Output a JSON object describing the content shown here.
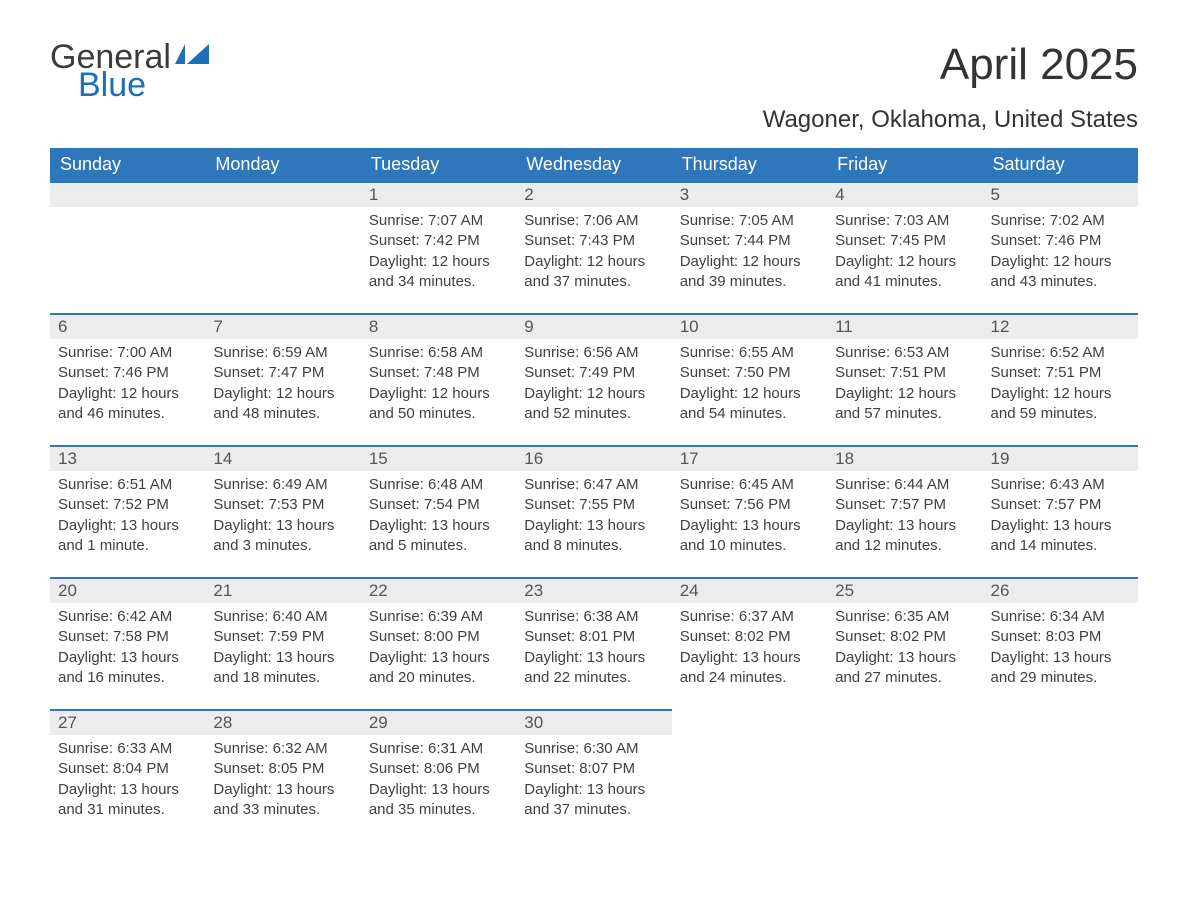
{
  "logo": {
    "text1": "General",
    "text2": "Blue"
  },
  "title": "April 2025",
  "location": "Wagoner, Oklahoma, United States",
  "colors": {
    "header_bg": "#2f77bb",
    "header_text": "#ffffff",
    "daynum_bg": "#ececec",
    "daynum_border": "#2f77bb",
    "body_text": "#404040",
    "title_text": "#333333",
    "logo_blue": "#1d6fb8",
    "logo_gray": "#3b3b3b",
    "page_bg": "#ffffff"
  },
  "typography": {
    "title_fontsize": 44,
    "location_fontsize": 24,
    "header_fontsize": 18,
    "daynum_fontsize": 17,
    "body_fontsize": 15,
    "font_family": "Segoe UI"
  },
  "day_labels": [
    "Sunday",
    "Monday",
    "Tuesday",
    "Wednesday",
    "Thursday",
    "Friday",
    "Saturday"
  ],
  "labels": {
    "sunrise": "Sunrise:",
    "sunset": "Sunset:",
    "daylight": "Daylight:"
  },
  "weeks": [
    [
      null,
      null,
      {
        "n": "1",
        "sunrise": "7:07 AM",
        "sunset": "7:42 PM",
        "daylight": "12 hours and 34 minutes."
      },
      {
        "n": "2",
        "sunrise": "7:06 AM",
        "sunset": "7:43 PM",
        "daylight": "12 hours and 37 minutes."
      },
      {
        "n": "3",
        "sunrise": "7:05 AM",
        "sunset": "7:44 PM",
        "daylight": "12 hours and 39 minutes."
      },
      {
        "n": "4",
        "sunrise": "7:03 AM",
        "sunset": "7:45 PM",
        "daylight": "12 hours and 41 minutes."
      },
      {
        "n": "5",
        "sunrise": "7:02 AM",
        "sunset": "7:46 PM",
        "daylight": "12 hours and 43 minutes."
      }
    ],
    [
      {
        "n": "6",
        "sunrise": "7:00 AM",
        "sunset": "7:46 PM",
        "daylight": "12 hours and 46 minutes."
      },
      {
        "n": "7",
        "sunrise": "6:59 AM",
        "sunset": "7:47 PM",
        "daylight": "12 hours and 48 minutes."
      },
      {
        "n": "8",
        "sunrise": "6:58 AM",
        "sunset": "7:48 PM",
        "daylight": "12 hours and 50 minutes."
      },
      {
        "n": "9",
        "sunrise": "6:56 AM",
        "sunset": "7:49 PM",
        "daylight": "12 hours and 52 minutes."
      },
      {
        "n": "10",
        "sunrise": "6:55 AM",
        "sunset": "7:50 PM",
        "daylight": "12 hours and 54 minutes."
      },
      {
        "n": "11",
        "sunrise": "6:53 AM",
        "sunset": "7:51 PM",
        "daylight": "12 hours and 57 minutes."
      },
      {
        "n": "12",
        "sunrise": "6:52 AM",
        "sunset": "7:51 PM",
        "daylight": "12 hours and 59 minutes."
      }
    ],
    [
      {
        "n": "13",
        "sunrise": "6:51 AM",
        "sunset": "7:52 PM",
        "daylight": "13 hours and 1 minute."
      },
      {
        "n": "14",
        "sunrise": "6:49 AM",
        "sunset": "7:53 PM",
        "daylight": "13 hours and 3 minutes."
      },
      {
        "n": "15",
        "sunrise": "6:48 AM",
        "sunset": "7:54 PM",
        "daylight": "13 hours and 5 minutes."
      },
      {
        "n": "16",
        "sunrise": "6:47 AM",
        "sunset": "7:55 PM",
        "daylight": "13 hours and 8 minutes."
      },
      {
        "n": "17",
        "sunrise": "6:45 AM",
        "sunset": "7:56 PM",
        "daylight": "13 hours and 10 minutes."
      },
      {
        "n": "18",
        "sunrise": "6:44 AM",
        "sunset": "7:57 PM",
        "daylight": "13 hours and 12 minutes."
      },
      {
        "n": "19",
        "sunrise": "6:43 AM",
        "sunset": "7:57 PM",
        "daylight": "13 hours and 14 minutes."
      }
    ],
    [
      {
        "n": "20",
        "sunrise": "6:42 AM",
        "sunset": "7:58 PM",
        "daylight": "13 hours and 16 minutes."
      },
      {
        "n": "21",
        "sunrise": "6:40 AM",
        "sunset": "7:59 PM",
        "daylight": "13 hours and 18 minutes."
      },
      {
        "n": "22",
        "sunrise": "6:39 AM",
        "sunset": "8:00 PM",
        "daylight": "13 hours and 20 minutes."
      },
      {
        "n": "23",
        "sunrise": "6:38 AM",
        "sunset": "8:01 PM",
        "daylight": "13 hours and 22 minutes."
      },
      {
        "n": "24",
        "sunrise": "6:37 AM",
        "sunset": "8:02 PM",
        "daylight": "13 hours and 24 minutes."
      },
      {
        "n": "25",
        "sunrise": "6:35 AM",
        "sunset": "8:02 PM",
        "daylight": "13 hours and 27 minutes."
      },
      {
        "n": "26",
        "sunrise": "6:34 AM",
        "sunset": "8:03 PM",
        "daylight": "13 hours and 29 minutes."
      }
    ],
    [
      {
        "n": "27",
        "sunrise": "6:33 AM",
        "sunset": "8:04 PM",
        "daylight": "13 hours and 31 minutes."
      },
      {
        "n": "28",
        "sunrise": "6:32 AM",
        "sunset": "8:05 PM",
        "daylight": "13 hours and 33 minutes."
      },
      {
        "n": "29",
        "sunrise": "6:31 AM",
        "sunset": "8:06 PM",
        "daylight": "13 hours and 35 minutes."
      },
      {
        "n": "30",
        "sunrise": "6:30 AM",
        "sunset": "8:07 PM",
        "daylight": "13 hours and 37 minutes."
      },
      null,
      null,
      null
    ]
  ]
}
